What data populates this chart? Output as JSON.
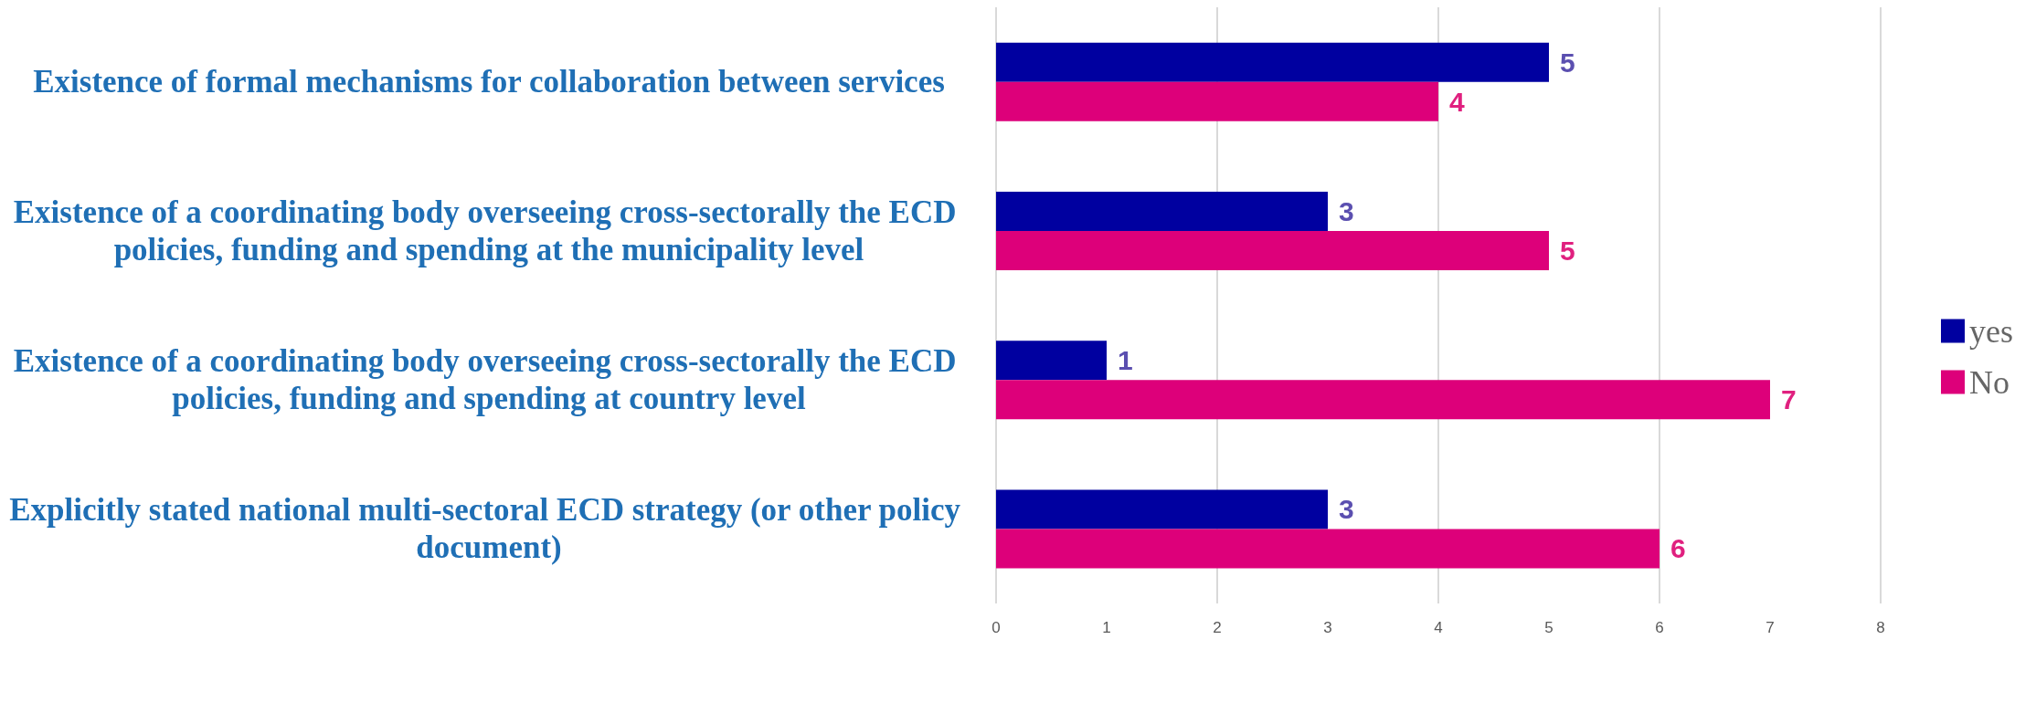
{
  "chart_data": {
    "type": "bar",
    "orientation": "horizontal",
    "categories": [
      "Existence of formal mechanisms for collaboration between services",
      "Existence of a coordinating body overseeing cross-sectorally the ECD policies, funding and spending at the municipality level",
      "Existence of a coordinating body overseeing cross-sectorally the ECD policies, funding and spending at country level",
      "Explicitly stated national multi-sectoral ECD strategy (or other policy document)"
    ],
    "series": [
      {
        "name": "yes",
        "color": "#0000a0",
        "values": [
          5,
          3,
          1,
          3
        ]
      },
      {
        "name": "No",
        "color": "#dd007a",
        "values": [
          4,
          5,
          7,
          6
        ]
      }
    ],
    "xlim": [
      0,
      8
    ],
    "xticks": [
      0,
      1,
      2,
      3,
      4,
      5,
      6,
      7,
      8
    ],
    "grid": "x",
    "legend": "right",
    "data_labels": true
  }
}
